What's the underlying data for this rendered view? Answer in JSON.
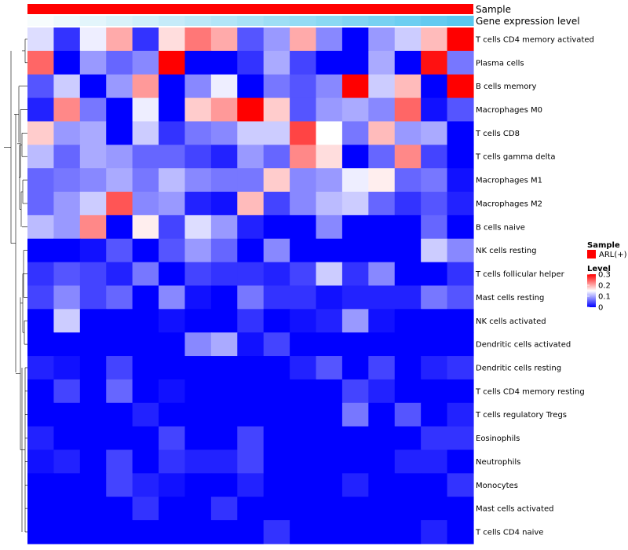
{
  "chart_data": {
    "type": "heatmap",
    "title": "",
    "annotation_rows": [
      {
        "label": "Sample",
        "color": "#ff0000"
      },
      {
        "label": "Gene expression level",
        "colors_low_to_high": [
          "#f7fcfd",
          "#59c7ef"
        ]
      }
    ],
    "row_labels": [
      "T cells CD4 memory activated",
      "Plasma cells",
      "B cells memory",
      "Macrophages M0",
      "T cells CD8",
      "T cells gamma delta",
      "Macrophages M1",
      "Macrophages M2",
      "B cells naive",
      "NK cells resting",
      "T cells follicular helper",
      "Mast cells resting",
      "NK cells activated",
      "Dendritic cells activated",
      "Dendritic cells resting",
      "T cells CD4 memory resting",
      "T cells regulatory  Tregs",
      "Eosinophils",
      "Neutrophils",
      "Monocytes",
      "Mast cells activated",
      "T cells CD4 naive"
    ],
    "n_columns": 17,
    "color_range": [
      0,
      0.3
    ],
    "colors": {
      "low": "#0000ff",
      "mid": "#ffffff",
      "high": "#ff0000"
    },
    "values": [
      [
        0.13,
        0.03,
        0.14,
        0.2,
        0.03,
        0.17,
        0.23,
        0.2,
        0.05,
        0.09,
        0.2,
        0.08,
        0.0,
        0.09,
        0.12,
        0.19,
        0.3
      ],
      [
        0.24,
        0.0,
        0.09,
        0.06,
        0.08,
        0.3,
        0.0,
        0.0,
        0.03,
        0.1,
        0.04,
        0.0,
        0.0,
        0.1,
        0.0,
        0.29,
        0.07
      ],
      [
        0.05,
        0.12,
        0.0,
        0.09,
        0.21,
        0.0,
        0.08,
        0.14,
        0.0,
        0.07,
        0.05,
        0.08,
        0.3,
        0.12,
        0.19,
        0.0,
        0.3
      ],
      [
        0.02,
        0.22,
        0.07,
        0.0,
        0.14,
        0.0,
        0.18,
        0.21,
        0.3,
        0.18,
        0.05,
        0.09,
        0.1,
        0.08,
        0.24,
        0.01,
        0.05
      ],
      [
        0.18,
        0.09,
        0.1,
        0.0,
        0.12,
        0.03,
        0.07,
        0.08,
        0.12,
        0.12,
        0.26,
        0.15,
        0.07,
        0.19,
        0.09,
        0.1,
        0.0
      ],
      [
        0.11,
        0.06,
        0.1,
        0.09,
        0.06,
        0.06,
        0.04,
        0.02,
        0.09,
        0.06,
        0.22,
        0.17,
        0.0,
        0.06,
        0.22,
        0.04,
        0.0
      ],
      [
        0.06,
        0.07,
        0.08,
        0.1,
        0.07,
        0.11,
        0.08,
        0.07,
        0.07,
        0.18,
        0.08,
        0.09,
        0.14,
        0.16,
        0.06,
        0.07,
        0.01
      ],
      [
        0.06,
        0.09,
        0.12,
        0.25,
        0.08,
        0.09,
        0.02,
        0.01,
        0.19,
        0.04,
        0.08,
        0.11,
        0.12,
        0.06,
        0.03,
        0.05,
        0.02
      ],
      [
        0.11,
        0.09,
        0.22,
        0.0,
        0.16,
        0.04,
        0.13,
        0.09,
        0.02,
        0.0,
        0.0,
        0.08,
        0.0,
        0.0,
        0.0,
        0.06,
        0.0
      ],
      [
        0.0,
        0.0,
        0.01,
        0.05,
        0.0,
        0.05,
        0.09,
        0.06,
        0.0,
        0.08,
        0.0,
        0.0,
        0.0,
        0.0,
        0.0,
        0.12,
        0.08
      ],
      [
        0.03,
        0.05,
        0.04,
        0.02,
        0.07,
        0.0,
        0.04,
        0.03,
        0.03,
        0.02,
        0.04,
        0.12,
        0.03,
        0.08,
        0.0,
        0.0,
        0.03
      ],
      [
        0.04,
        0.08,
        0.04,
        0.06,
        0.0,
        0.08,
        0.01,
        0.0,
        0.07,
        0.03,
        0.03,
        0.01,
        0.02,
        0.02,
        0.02,
        0.07,
        0.05
      ],
      [
        0.0,
        0.12,
        0.0,
        0.0,
        0.0,
        0.01,
        0.0,
        0.0,
        0.03,
        0.0,
        0.01,
        0.02,
        0.09,
        0.01,
        0.0,
        0.0,
        0.0
      ],
      [
        0.0,
        0.0,
        0.0,
        0.0,
        0.0,
        0.0,
        0.08,
        0.1,
        0.01,
        0.04,
        0.0,
        0.0,
        0.0,
        0.0,
        0.0,
        0.0,
        0.0
      ],
      [
        0.02,
        0.01,
        0.0,
        0.04,
        0.0,
        0.0,
        0.0,
        0.0,
        0.0,
        0.0,
        0.02,
        0.05,
        0.0,
        0.04,
        0.0,
        0.02,
        0.03
      ],
      [
        0.0,
        0.04,
        0.0,
        0.06,
        0.0,
        0.01,
        0.0,
        0.0,
        0.0,
        0.0,
        0.0,
        0.0,
        0.04,
        0.02,
        0.0,
        0.0,
        0.0
      ],
      [
        0.0,
        0.0,
        0.0,
        0.0,
        0.02,
        0.0,
        0.0,
        0.0,
        0.0,
        0.0,
        0.0,
        0.0,
        0.07,
        0.0,
        0.05,
        0.0,
        0.02
      ],
      [
        0.02,
        0.0,
        0.0,
        0.0,
        0.0,
        0.04,
        0.0,
        0.0,
        0.04,
        0.0,
        0.0,
        0.0,
        0.0,
        0.0,
        0.0,
        0.03,
        0.03
      ],
      [
        0.01,
        0.02,
        0.0,
        0.04,
        0.0,
        0.03,
        0.02,
        0.02,
        0.04,
        0.0,
        0.0,
        0.0,
        0.0,
        0.0,
        0.02,
        0.02,
        0.0
      ],
      [
        0.0,
        0.0,
        0.0,
        0.04,
        0.02,
        0.01,
        0.0,
        0.0,
        0.02,
        0.0,
        0.0,
        0.0,
        0.02,
        0.0,
        0.0,
        0.0,
        0.03
      ],
      [
        0.0,
        0.0,
        0.0,
        0.0,
        0.03,
        0.0,
        0.0,
        0.03,
        0.0,
        0.0,
        0.0,
        0.0,
        0.0,
        0.0,
        0.0,
        0.0,
        0.0
      ],
      [
        0.0,
        0.0,
        0.0,
        0.0,
        0.0,
        0.0,
        0.0,
        0.0,
        0.0,
        0.03,
        0.0,
        0.0,
        0.0,
        0.0,
        0.0,
        0.02,
        0.0
      ]
    ],
    "legend": {
      "sample_title": "Sample",
      "sample_entry": "ARL(+)",
      "level_title": "Level",
      "level_ticks": [
        {
          "value": 0.3,
          "label": "0.3"
        },
        {
          "value": 0.2,
          "label": "0.2"
        },
        {
          "value": 0.1,
          "label": "0.1"
        },
        {
          "value": 0,
          "label": "0"
        }
      ]
    }
  }
}
